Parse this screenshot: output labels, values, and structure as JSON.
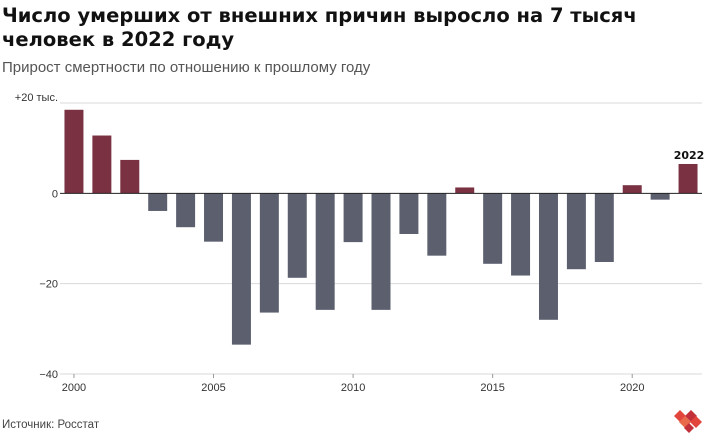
{
  "header": {
    "title": "Число умерших от внешних причин выросло на 7 тысяч человек в 2022 году",
    "subtitle": "Прирост смертности по отношению к прошлому году"
  },
  "footer": {
    "source": "Источник: Росстат"
  },
  "colors": {
    "positive": "#7a3142",
    "negative": "#5b5f6e",
    "logo": "#e2453c"
  },
  "chart_data": {
    "type": "bar",
    "categories": [
      2000,
      2001,
      2002,
      2003,
      2004,
      2005,
      2006,
      2007,
      2008,
      2009,
      2010,
      2011,
      2012,
      2013,
      2014,
      2015,
      2016,
      2017,
      2018,
      2019,
      2020,
      2021,
      2022
    ],
    "values": [
      18.5,
      12.8,
      7.4,
      -3.9,
      -7.5,
      -10.7,
      -33.5,
      -26.4,
      -18.7,
      -25.8,
      -10.8,
      -25.8,
      -9,
      -13.8,
      1.3,
      -15.6,
      -18.2,
      -28,
      -16.8,
      -15.2,
      1.8,
      -1.4,
      6.5
    ],
    "ylim": [
      -40,
      20
    ],
    "yticks": [
      {
        "value": 20,
        "label": "+20 тыс."
      },
      {
        "value": 0,
        "label": "0"
      },
      {
        "value": -20,
        "label": "−20"
      },
      {
        "value": -40,
        "label": "−40"
      }
    ],
    "xticks": [
      {
        "value": 2000,
        "label": "2000"
      },
      {
        "value": 2005,
        "label": "2005"
      },
      {
        "value": 2010,
        "label": "2010"
      },
      {
        "value": 2015,
        "label": "2015"
      },
      {
        "value": 2020,
        "label": "2020"
      }
    ],
    "annotations": [
      {
        "category": 2022,
        "label": "2022"
      }
    ],
    "grid": true
  }
}
